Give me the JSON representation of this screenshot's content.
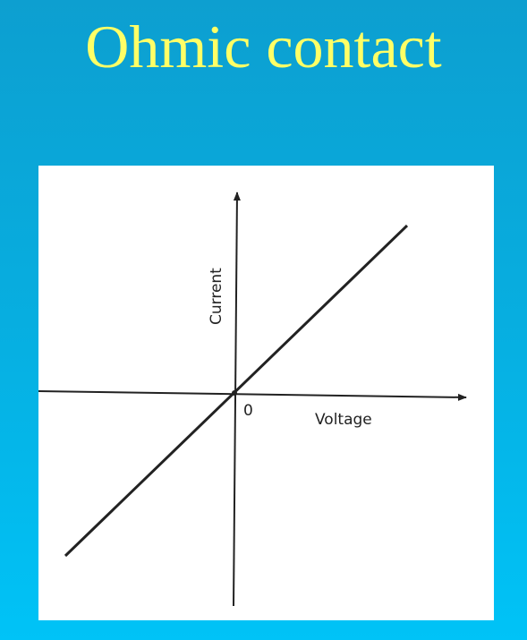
{
  "slide": {
    "title": "Ohmic contact",
    "title_color": "#ffff66",
    "background_top": "#0d9fd0",
    "background_bottom": "#00c3f7"
  },
  "figure": {
    "type": "line",
    "x_axis_label": "Voltage",
    "y_axis_label": "Current",
    "origin_label": "0",
    "curve": "linear I-V characteristic through the origin",
    "line_color": "#222222"
  }
}
